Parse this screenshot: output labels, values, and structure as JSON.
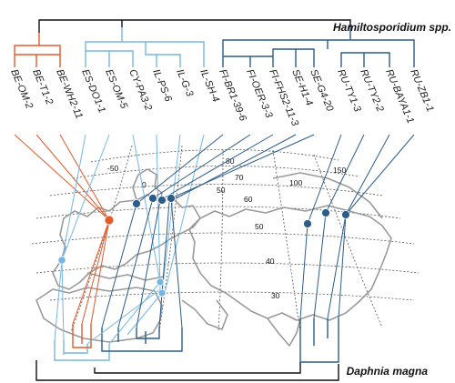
{
  "titles": {
    "parasite": "Hamiltosporidium spp.",
    "host": "Daphnia magna"
  },
  "colors": {
    "clade_red": "#e35a2b",
    "clade_light": "#75b6e6",
    "clade_dark": "#2c5c8a",
    "root_black": "#111111",
    "map_land": "#9a9a9a",
    "grid": "#555555"
  },
  "parasite_tips": [
    {
      "label": "BE-OM-2",
      "clade": "red"
    },
    {
      "label": "BE-T1-2",
      "clade": "red"
    },
    {
      "label": "BE-WH2-11",
      "clade": "red"
    },
    {
      "label": "ES-DO1-1",
      "clade": "light"
    },
    {
      "label": "ES-OM-5",
      "clade": "light"
    },
    {
      "label": "CY-PA3-2",
      "clade": "light"
    },
    {
      "label": "IL-PS-6",
      "clade": "light"
    },
    {
      "label": "IL-G-3",
      "clade": "light"
    },
    {
      "label": "IL-SH-4",
      "clade": "light"
    },
    {
      "label": "FI-BR1-39-6",
      "clade": "dark"
    },
    {
      "label": "FI-OER-3-3",
      "clade": "dark"
    },
    {
      "label": "FI-FHS2-11-3",
      "clade": "dark"
    },
    {
      "label": "SE-H1-4",
      "clade": "dark"
    },
    {
      "label": "SE-G4-20",
      "clade": "dark"
    },
    {
      "label": "RU-TY1-3",
      "clade": "dark"
    },
    {
      "label": "RU-TY2-2",
      "clade": "dark"
    },
    {
      "label": "RU-BAYA1-1",
      "clade": "dark"
    },
    {
      "label": "RU-ZB1-1",
      "clade": "dark"
    }
  ],
  "grid_labels": {
    "longitudes": [
      "-50",
      "0",
      "50",
      "100",
      "150"
    ],
    "latitudes": [
      "80",
      "70",
      "60",
      "50",
      "40",
      "30"
    ]
  }
}
